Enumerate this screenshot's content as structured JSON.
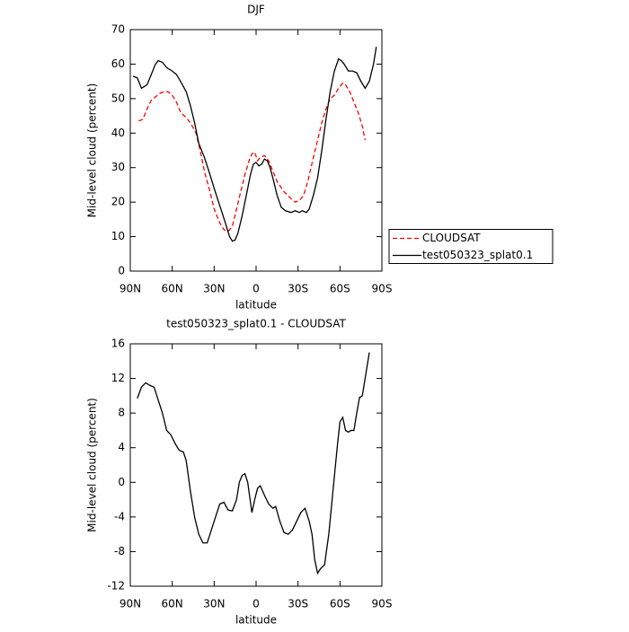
{
  "chart_data": [
    {
      "type": "line",
      "title": "DJF",
      "xlabel": "latitude",
      "ylabel": "Mid-level cloud (percent)",
      "xlim": [
        90,
        -90
      ],
      "xticks": [
        {
          "value": 90,
          "label": "90N"
        },
        {
          "value": 60,
          "label": "60N"
        },
        {
          "value": 30,
          "label": "30N"
        },
        0,
        {
          "value": -30,
          "label": "30S"
        },
        {
          "value": -60,
          "label": "60S"
        },
        {
          "value": -90,
          "label": "90S"
        }
      ],
      "ylim": [
        0,
        70
      ],
      "yticks": [
        0,
        10,
        20,
        30,
        40,
        50,
        60,
        70
      ],
      "legend": "right",
      "series": [
        {
          "name": "CLOUDSAT",
          "color": "#ff0000",
          "dashed": true,
          "x": [
            84,
            81,
            78,
            75,
            72,
            69,
            66,
            63,
            60,
            57,
            54,
            50,
            47,
            43,
            40,
            37,
            33,
            30,
            26,
            23,
            20,
            17,
            14,
            11,
            8,
            5,
            3,
            1,
            -1,
            -3,
            -6,
            -9,
            -12,
            -15,
            -20,
            -25,
            -28,
            -31,
            -34,
            -37,
            -41,
            -44,
            -47,
            -50,
            -53,
            -56,
            -59,
            -62,
            -64,
            -67,
            -70,
            -73,
            -76,
            -78
          ],
          "values": [
            43.5,
            44,
            47,
            49.5,
            50.5,
            51.5,
            52,
            52,
            51,
            49,
            46,
            44.5,
            43,
            40,
            35,
            29,
            23,
            18,
            14,
            12,
            11.5,
            13,
            18,
            23,
            28,
            32,
            34,
            34.5,
            32,
            33,
            33.5,
            32,
            29,
            26,
            23,
            21,
            20,
            20.5,
            22,
            26,
            33,
            38,
            43,
            47,
            50,
            51,
            53,
            54.5,
            54,
            52,
            49,
            46,
            42,
            38
          ]
        },
        {
          "name": "test050323_splat0.1",
          "color": "#000000",
          "dashed": false,
          "x": [
            88,
            85,
            82,
            78,
            75,
            72,
            70,
            67,
            64,
            60,
            57,
            54,
            50,
            47,
            44,
            41,
            37,
            33,
            30,
            26,
            22,
            19,
            17,
            15,
            13,
            10,
            7,
            4,
            2,
            0,
            -2,
            -4,
            -6,
            -8,
            -10,
            -12,
            -15,
            -18,
            -21,
            -25,
            -28,
            -31,
            -33,
            -36,
            -38,
            -41,
            -44,
            -47,
            -50,
            -53,
            -56,
            -59,
            -61,
            -63,
            -66,
            -69,
            -72,
            -75,
            -78,
            -81,
            -84,
            -86
          ],
          "values": [
            56.5,
            56,
            53,
            54,
            57,
            60,
            61,
            60.5,
            59,
            58,
            57,
            55,
            52,
            48,
            43,
            37,
            33,
            28,
            24,
            19,
            14,
            10,
            8.7,
            9,
            11,
            16,
            22,
            28,
            31,
            31.5,
            30.5,
            31,
            32.5,
            32,
            30,
            27,
            22,
            18.5,
            17.5,
            17,
            17.5,
            17,
            17.5,
            17,
            18,
            22,
            27,
            35,
            44,
            52,
            58,
            61.5,
            61,
            60,
            58,
            58,
            57.5,
            55,
            53,
            55,
            60,
            65
          ]
        }
      ]
    },
    {
      "type": "line",
      "title": "test050323_splat0.1 - CLOUDSAT",
      "xlabel": "latitude",
      "ylabel": "Mid-level cloud (percent)",
      "xlim": [
        90,
        -90
      ],
      "xticks": [
        {
          "value": 90,
          "label": "90N"
        },
        {
          "value": 60,
          "label": "60N"
        },
        {
          "value": 30,
          "label": "30N"
        },
        0,
        {
          "value": -30,
          "label": "30S"
        },
        {
          "value": -60,
          "label": "60S"
        },
        {
          "value": -90,
          "label": "90S"
        }
      ],
      "ylim": [
        -12,
        16
      ],
      "yticks": [
        -12,
        -8,
        -4,
        0,
        4,
        8,
        12,
        16
      ],
      "series": [
        {
          "color": "#000000",
          "dashed": false,
          "x": [
            85,
            82,
            79,
            76,
            73,
            70,
            67,
            64,
            61,
            58,
            55,
            52,
            50,
            47,
            44,
            41,
            38,
            35,
            32,
            29,
            26,
            23,
            20,
            17,
            14,
            12,
            10,
            8,
            6,
            3,
            1,
            -1,
            -3,
            -6,
            -9,
            -12,
            -14,
            -17,
            -20,
            -23,
            -26,
            -29,
            -32,
            -35,
            -38,
            -40,
            -42,
            -44,
            -46,
            -49,
            -52,
            -55,
            -58,
            -60,
            -62,
            -64,
            -66,
            -68,
            -70,
            -72,
            -74,
            -76,
            -78,
            -80,
            -81
          ],
          "values": [
            9.7,
            11,
            11.5,
            11.2,
            11,
            9.5,
            8,
            6,
            5.5,
            4.5,
            3.7,
            3.5,
            2.5,
            -1,
            -4,
            -6,
            -7,
            -7,
            -5.5,
            -4,
            -2.5,
            -2.3,
            -3.2,
            -3.3,
            -2,
            0,
            0.8,
            1,
            0,
            -3.5,
            -2,
            -0.7,
            -0.4,
            -1.5,
            -2.5,
            -3,
            -2.8,
            -4.5,
            -5.8,
            -6,
            -5.5,
            -4.5,
            -3.5,
            -3,
            -4.5,
            -6,
            -9,
            -10.5,
            -10,
            -9.5,
            -6,
            -1,
            4,
            7,
            7.5,
            6,
            5.8,
            6,
            6,
            8,
            9.8,
            10,
            12,
            14,
            15
          ]
        }
      ]
    }
  ]
}
